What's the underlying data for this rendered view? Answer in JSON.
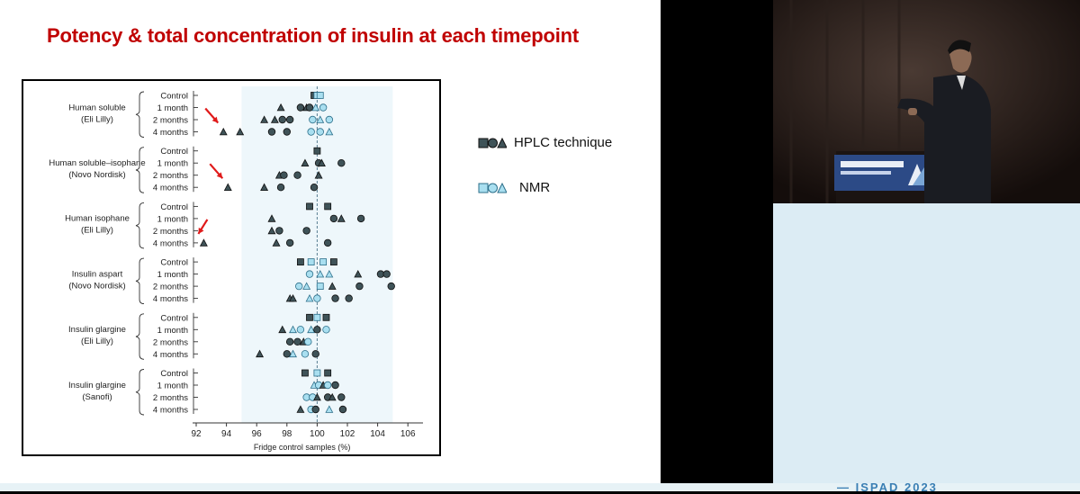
{
  "slide": {
    "title": "Potency & total concentration of insulin at each timepoint"
  },
  "legend": {
    "hplc_label": "HPLC technique",
    "nmr_label": "NMR"
  },
  "colors": {
    "title_red": "#c00000",
    "hplc_fill": "#3f5358",
    "nmr_fill": "#a9dff0",
    "band": "#eef7fb",
    "reference_line": "#5a7f93",
    "arrow_red": "#e01a1a"
  },
  "chart_data": {
    "type": "scatter",
    "xlabel": "Fridge control samples (%)",
    "xlim": [
      92,
      107
    ],
    "xticks": [
      92,
      94,
      96,
      98,
      100,
      102,
      104,
      106
    ],
    "reference_x": 100,
    "band": [
      95,
      105
    ],
    "timepoints": [
      "Control",
      "1 month",
      "2 months",
      "4 months"
    ],
    "groups": [
      {
        "name": "Human soluble",
        "maker": "(Eli Lilly)",
        "arrow": true,
        "points": [
          {
            "t": 0,
            "x": 99.8,
            "m": "square",
            "s": "hplc"
          },
          {
            "t": 0,
            "x": 100.0,
            "m": "square",
            "s": "nmr"
          },
          {
            "t": 0,
            "x": 100.2,
            "m": "square",
            "s": "nmr"
          },
          {
            "t": 1,
            "x": 97.6,
            "m": "triangle",
            "s": "hplc"
          },
          {
            "t": 1,
            "x": 98.9,
            "m": "circle",
            "s": "hplc"
          },
          {
            "t": 1,
            "x": 99.3,
            "m": "triangle",
            "s": "hplc"
          },
          {
            "t": 1,
            "x": 99.5,
            "m": "circle",
            "s": "hplc"
          },
          {
            "t": 1,
            "x": 99.9,
            "m": "triangle",
            "s": "nmr"
          },
          {
            "t": 1,
            "x": 100.4,
            "m": "circle",
            "s": "nmr"
          },
          {
            "t": 2,
            "x": 96.5,
            "m": "triangle",
            "s": "hplc"
          },
          {
            "t": 2,
            "x": 97.2,
            "m": "triangle",
            "s": "hplc"
          },
          {
            "t": 2,
            "x": 97.7,
            "m": "circle",
            "s": "hplc"
          },
          {
            "t": 2,
            "x": 98.2,
            "m": "circle",
            "s": "hplc"
          },
          {
            "t": 2,
            "x": 99.7,
            "m": "circle",
            "s": "nmr"
          },
          {
            "t": 2,
            "x": 100.2,
            "m": "triangle",
            "s": "nmr"
          },
          {
            "t": 2,
            "x": 100.8,
            "m": "circle",
            "s": "nmr"
          },
          {
            "t": 3,
            "x": 93.8,
            "m": "triangle",
            "s": "hplc"
          },
          {
            "t": 3,
            "x": 94.9,
            "m": "triangle",
            "s": "hplc"
          },
          {
            "t": 3,
            "x": 97.0,
            "m": "circle",
            "s": "hplc"
          },
          {
            "t": 3,
            "x": 98.0,
            "m": "circle",
            "s": "hplc"
          },
          {
            "t": 3,
            "x": 99.6,
            "m": "circle",
            "s": "nmr"
          },
          {
            "t": 3,
            "x": 100.2,
            "m": "circle",
            "s": "nmr"
          },
          {
            "t": 3,
            "x": 100.8,
            "m": "triangle",
            "s": "nmr"
          }
        ]
      },
      {
        "name": "Human soluble–isophane",
        "maker": "(Novo Nordisk)",
        "arrow": true,
        "points": [
          {
            "t": 0,
            "x": 100.0,
            "m": "square",
            "s": "hplc"
          },
          {
            "t": 1,
            "x": 99.2,
            "m": "triangle",
            "s": "hplc"
          },
          {
            "t": 1,
            "x": 100.1,
            "m": "circle",
            "s": "hplc"
          },
          {
            "t": 1,
            "x": 100.3,
            "m": "triangle",
            "s": "hplc"
          },
          {
            "t": 1,
            "x": 101.6,
            "m": "circle",
            "s": "hplc"
          },
          {
            "t": 2,
            "x": 97.5,
            "m": "triangle",
            "s": "hplc"
          },
          {
            "t": 2,
            "x": 97.8,
            "m": "circle",
            "s": "hplc"
          },
          {
            "t": 2,
            "x": 98.7,
            "m": "circle",
            "s": "hplc"
          },
          {
            "t": 2,
            "x": 100.1,
            "m": "triangle",
            "s": "hplc"
          },
          {
            "t": 3,
            "x": 94.1,
            "m": "triangle",
            "s": "hplc"
          },
          {
            "t": 3,
            "x": 96.5,
            "m": "triangle",
            "s": "hplc"
          },
          {
            "t": 3,
            "x": 97.6,
            "m": "circle",
            "s": "hplc"
          },
          {
            "t": 3,
            "x": 99.8,
            "m": "circle",
            "s": "hplc"
          }
        ]
      },
      {
        "name": "Human isophane",
        "maker": "(Eli Lilly)",
        "arrow": true,
        "points": [
          {
            "t": 0,
            "x": 99.5,
            "m": "square",
            "s": "hplc"
          },
          {
            "t": 0,
            "x": 100.7,
            "m": "square",
            "s": "hplc"
          },
          {
            "t": 1,
            "x": 97.0,
            "m": "triangle",
            "s": "hplc"
          },
          {
            "t": 1,
            "x": 101.1,
            "m": "circle",
            "s": "hplc"
          },
          {
            "t": 1,
            "x": 101.6,
            "m": "triangle",
            "s": "hplc"
          },
          {
            "t": 1,
            "x": 102.9,
            "m": "circle",
            "s": "hplc"
          },
          {
            "t": 2,
            "x": 97.0,
            "m": "triangle",
            "s": "hplc"
          },
          {
            "t": 2,
            "x": 97.5,
            "m": "circle",
            "s": "hplc"
          },
          {
            "t": 2,
            "x": 99.3,
            "m": "circle",
            "s": "hplc"
          },
          {
            "t": 3,
            "x": 92.5,
            "m": "triangle",
            "s": "hplc"
          },
          {
            "t": 3,
            "x": 97.3,
            "m": "triangle",
            "s": "hplc"
          },
          {
            "t": 3,
            "x": 98.2,
            "m": "circle",
            "s": "hplc"
          },
          {
            "t": 3,
            "x": 100.7,
            "m": "circle",
            "s": "hplc"
          }
        ]
      },
      {
        "name": "Insulin aspart",
        "maker": "(Novo Nordisk)",
        "arrow": false,
        "points": [
          {
            "t": 0,
            "x": 98.9,
            "m": "square",
            "s": "hplc"
          },
          {
            "t": 0,
            "x": 99.6,
            "m": "square",
            "s": "nmr"
          },
          {
            "t": 0,
            "x": 100.4,
            "m": "square",
            "s": "nmr"
          },
          {
            "t": 0,
            "x": 101.1,
            "m": "square",
            "s": "hplc"
          },
          {
            "t": 1,
            "x": 99.5,
            "m": "circle",
            "s": "nmr"
          },
          {
            "t": 1,
            "x": 100.2,
            "m": "triangle",
            "s": "nmr"
          },
          {
            "t": 1,
            "x": 100.8,
            "m": "triangle",
            "s": "nmr"
          },
          {
            "t": 1,
            "x": 102.7,
            "m": "triangle",
            "s": "hplc"
          },
          {
            "t": 1,
            "x": 104.2,
            "m": "circle",
            "s": "hplc"
          },
          {
            "t": 1,
            "x": 104.6,
            "m": "circle",
            "s": "hplc"
          },
          {
            "t": 2,
            "x": 98.8,
            "m": "circle",
            "s": "nmr"
          },
          {
            "t": 2,
            "x": 99.3,
            "m": "triangle",
            "s": "nmr"
          },
          {
            "t": 2,
            "x": 100.2,
            "m": "square",
            "s": "nmr"
          },
          {
            "t": 2,
            "x": 101.0,
            "m": "triangle",
            "s": "hplc"
          },
          {
            "t": 2,
            "x": 102.8,
            "m": "circle",
            "s": "hplc"
          },
          {
            "t": 2,
            "x": 104.9,
            "m": "circle",
            "s": "hplc"
          },
          {
            "t": 3,
            "x": 98.2,
            "m": "triangle",
            "s": "hplc"
          },
          {
            "t": 3,
            "x": 98.4,
            "m": "triangle",
            "s": "hplc"
          },
          {
            "t": 3,
            "x": 99.5,
            "m": "triangle",
            "s": "nmr"
          },
          {
            "t": 3,
            "x": 100.0,
            "m": "circle",
            "s": "nmr"
          },
          {
            "t": 3,
            "x": 101.2,
            "m": "circle",
            "s": "hplc"
          },
          {
            "t": 3,
            "x": 102.1,
            "m": "circle",
            "s": "hplc"
          }
        ]
      },
      {
        "name": "Insulin glargine",
        "maker": "(Eli Lilly)",
        "arrow": false,
        "points": [
          {
            "t": 0,
            "x": 99.5,
            "m": "square",
            "s": "hplc"
          },
          {
            "t": 0,
            "x": 100.0,
            "m": "square",
            "s": "nmr"
          },
          {
            "t": 0,
            "x": 100.6,
            "m": "square",
            "s": "hplc"
          },
          {
            "t": 1,
            "x": 97.7,
            "m": "triangle",
            "s": "hplc"
          },
          {
            "t": 1,
            "x": 98.4,
            "m": "triangle",
            "s": "nmr"
          },
          {
            "t": 1,
            "x": 98.9,
            "m": "circle",
            "s": "nmr"
          },
          {
            "t": 1,
            "x": 99.6,
            "m": "triangle",
            "s": "nmr"
          },
          {
            "t": 1,
            "x": 100.0,
            "m": "circle",
            "s": "hplc"
          },
          {
            "t": 1,
            "x": 100.6,
            "m": "circle",
            "s": "nmr"
          },
          {
            "t": 2,
            "x": 98.2,
            "m": "circle",
            "s": "hplc"
          },
          {
            "t": 2,
            "x": 98.7,
            "m": "circle",
            "s": "hplc"
          },
          {
            "t": 2,
            "x": 99.1,
            "m": "triangle",
            "s": "hplc"
          },
          {
            "t": 2,
            "x": 99.4,
            "m": "circle",
            "s": "nmr"
          },
          {
            "t": 3,
            "x": 96.2,
            "m": "triangle",
            "s": "hplc"
          },
          {
            "t": 3,
            "x": 98.0,
            "m": "circle",
            "s": "hplc"
          },
          {
            "t": 3,
            "x": 98.4,
            "m": "triangle",
            "s": "nmr"
          },
          {
            "t": 3,
            "x": 99.2,
            "m": "circle",
            "s": "nmr"
          },
          {
            "t": 3,
            "x": 99.9,
            "m": "circle",
            "s": "hplc"
          }
        ]
      },
      {
        "name": "Insulin glargine",
        "maker": "(Sanofi)",
        "arrow": false,
        "points": [
          {
            "t": 0,
            "x": 99.2,
            "m": "square",
            "s": "hplc"
          },
          {
            "t": 0,
            "x": 100.0,
            "m": "square",
            "s": "nmr"
          },
          {
            "t": 0,
            "x": 100.7,
            "m": "square",
            "s": "hplc"
          },
          {
            "t": 1,
            "x": 99.8,
            "m": "triangle",
            "s": "nmr"
          },
          {
            "t": 1,
            "x": 100.1,
            "m": "circle",
            "s": "nmr"
          },
          {
            "t": 1,
            "x": 100.4,
            "m": "triangle",
            "s": "hplc"
          },
          {
            "t": 1,
            "x": 100.7,
            "m": "circle",
            "s": "nmr"
          },
          {
            "t": 1,
            "x": 101.2,
            "m": "circle",
            "s": "hplc"
          },
          {
            "t": 2,
            "x": 99.3,
            "m": "circle",
            "s": "nmr"
          },
          {
            "t": 2,
            "x": 99.7,
            "m": "circle",
            "s": "nmr"
          },
          {
            "t": 2,
            "x": 100.0,
            "m": "triangle",
            "s": "hplc"
          },
          {
            "t": 2,
            "x": 100.7,
            "m": "circle",
            "s": "hplc"
          },
          {
            "t": 2,
            "x": 101.0,
            "m": "triangle",
            "s": "hplc"
          },
          {
            "t": 2,
            "x": 101.6,
            "m": "circle",
            "s": "hplc"
          },
          {
            "t": 3,
            "x": 98.9,
            "m": "triangle",
            "s": "hplc"
          },
          {
            "t": 3,
            "x": 99.6,
            "m": "circle",
            "s": "nmr"
          },
          {
            "t": 3,
            "x": 99.9,
            "m": "circle",
            "s": "hplc"
          },
          {
            "t": 3,
            "x": 100.8,
            "m": "triangle",
            "s": "nmr"
          },
          {
            "t": 3,
            "x": 101.7,
            "m": "circle",
            "s": "hplc"
          }
        ]
      }
    ]
  }
}
